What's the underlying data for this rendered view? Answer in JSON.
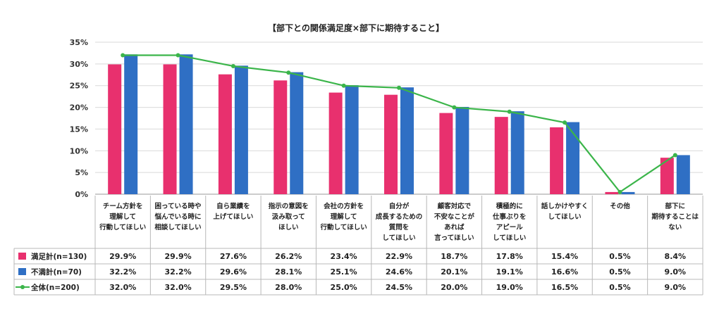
{
  "chart_data": {
    "type": "bar",
    "title": "【部下との関係満足度×部下に期待すること】",
    "ylim": [
      0,
      35
    ],
    "yticks": [
      "0%",
      "5%",
      "10%",
      "15%",
      "20%",
      "25%",
      "30%",
      "35%"
    ],
    "grid": true,
    "legend": "table-left",
    "categories": [
      [
        "チーム方針を",
        "理解して",
        "行動してほしい"
      ],
      [
        "困っている時や",
        "悩んでいる時に",
        "相談してほしい"
      ],
      [
        "自ら業績を",
        "上げてほしい"
      ],
      [
        "指示の意図を",
        "汲み取って",
        "ほしい"
      ],
      [
        "会社の方針を",
        "理解して",
        "行動してほしい"
      ],
      [
        "自分が",
        "成長するための",
        "質問を",
        "してほしい"
      ],
      [
        "顧客対応で",
        "不安なことが",
        "あれば",
        "言ってほしい"
      ],
      [
        "積極的に",
        "仕事ぶりを",
        "アピール",
        "してほしい"
      ],
      [
        "話しかけやすく",
        "してほしい"
      ],
      [
        "その他"
      ],
      [
        "部下に",
        "期待することは",
        "ない"
      ]
    ],
    "series": [
      {
        "name": "満足計(n=130)",
        "kind": "bar",
        "color": "#e8306e",
        "values": [
          29.9,
          29.9,
          27.6,
          26.2,
          23.4,
          22.9,
          18.7,
          17.8,
          15.4,
          0.5,
          8.4
        ],
        "labels": [
          "29.9%",
          "29.9%",
          "27.6%",
          "26.2%",
          "23.4%",
          "22.9%",
          "18.7%",
          "17.8%",
          "15.4%",
          "0.5%",
          "8.4%"
        ]
      },
      {
        "name": "不満計(n=70)",
        "kind": "bar",
        "color": "#2f6fc4",
        "values": [
          32.2,
          32.2,
          29.6,
          28.1,
          25.1,
          24.6,
          20.1,
          19.1,
          16.6,
          0.5,
          9.0
        ],
        "labels": [
          "32.2%",
          "32.2%",
          "29.6%",
          "28.1%",
          "25.1%",
          "24.6%",
          "20.1%",
          "19.1%",
          "16.6%",
          "0.5%",
          "9.0%"
        ]
      },
      {
        "name": "全体(n=200)",
        "kind": "line",
        "color": "#3bb54a",
        "values": [
          32.0,
          32.0,
          29.5,
          28.0,
          25.0,
          24.5,
          20.0,
          19.0,
          16.5,
          0.5,
          9.0
        ],
        "labels": [
          "32.0%",
          "32.0%",
          "29.5%",
          "28.0%",
          "25.0%",
          "24.5%",
          "20.0%",
          "19.0%",
          "16.5%",
          "0.5%",
          "9.0%"
        ]
      }
    ]
  }
}
